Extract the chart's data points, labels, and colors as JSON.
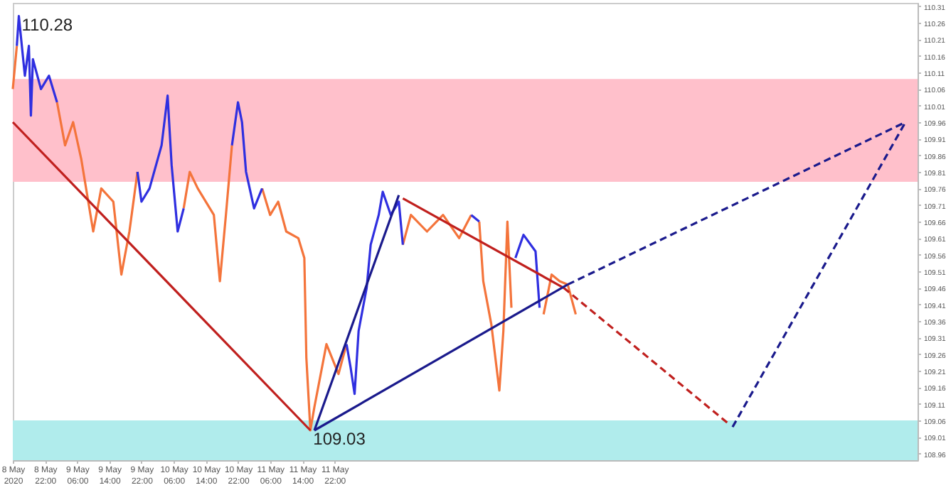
{
  "chart_data": {
    "type": "line",
    "xlim": [
      "2020-05-08T14:00",
      "2020-05-17T23:00"
    ],
    "ylim": [
      108.94,
      110.32
    ],
    "xticks": [
      {
        "value": "2020-05-08T14:00",
        "label": "8 May 2020"
      },
      {
        "value": "2020-05-08T22:00",
        "label": "8 May 22:00"
      },
      {
        "value": "2020-05-09T06:00",
        "label": "9 May 06:00"
      },
      {
        "value": "2020-05-09T14:00",
        "label": "9 May 14:00"
      },
      {
        "value": "2020-05-09T22:00",
        "label": "9 May 22:00"
      },
      {
        "value": "2020-05-10T06:00",
        "label": "10 May 06:00"
      },
      {
        "value": "2020-05-10T14:00",
        "label": "10 May 14:00"
      },
      {
        "value": "2020-05-10T22:00",
        "label": "10 May 22:00"
      },
      {
        "value": "2020-05-11T06:00",
        "label": "11 May 06:00"
      },
      {
        "value": "2020-05-11T14:00",
        "label": "11 May 14:00"
      },
      {
        "value": "2020-05-11T22:00",
        "label": "11 May 22:00"
      }
    ],
    "yticks": [
      110.31,
      110.26,
      110.21,
      110.16,
      110.11,
      110.06,
      110.01,
      109.96,
      109.91,
      109.86,
      109.81,
      109.76,
      109.71,
      109.66,
      109.61,
      109.56,
      109.51,
      109.46,
      109.41,
      109.36,
      109.31,
      109.26,
      109.21,
      109.16,
      109.11,
      109.06,
      109.01,
      108.96
    ],
    "grid": false,
    "bands": [
      {
        "axis": "y",
        "from": 109.78,
        "to": 110.09,
        "color": "#ffc0cb"
      },
      {
        "axis": "y",
        "from": 108.94,
        "to": 109.06,
        "color": "#b0ecec"
      }
    ],
    "series": [
      {
        "color": "#f4743b",
        "x": [
          "2020-05-08T14:00",
          "2020-05-08T15:00",
          "2020-05-08T20:00",
          "2020-05-09T01:00",
          "2020-05-09T03:00",
          "2020-05-09T05:00",
          "2020-05-09T07:00",
          "2020-05-09T10:00",
          "2020-05-09T12:00",
          "2020-05-09T15:00",
          "2020-05-09T17:00",
          "2020-05-09T19:00",
          "2020-05-09T21:00",
          "2020-05-10T02:00",
          "2020-05-10T08:30",
          "2020-05-10T10:00",
          "2020-05-10T12:00",
          "2020-05-10T16:00",
          "2020-05-10T17:30",
          "2020-05-10T19:00",
          "2020-05-10T20:30",
          "2020-05-11T00:00",
          "2020-05-11T04:00",
          "2020-05-11T06:00",
          "2020-05-11T08:00",
          "2020-05-11T10:00",
          "2020-05-11T13:00",
          "2020-05-11T14:30",
          "2020-05-11T15:00",
          "2020-05-11T16:00",
          "2020-05-11T17:00",
          "2020-05-11T20:00",
          "2020-05-11T23:00",
          "2020-05-12T01:00",
          "2020-05-12T08:00",
          "2020-05-12T15:00",
          "2020-05-12T17:00",
          "2020-05-12T21:00",
          "2020-05-13T01:00",
          "2020-05-13T05:00",
          "2020-05-13T08:00",
          "2020-05-13T09:00",
          "2020-05-13T10:00",
          "2020-05-13T11:00",
          "2020-05-13T13:00",
          "2020-05-13T15:00",
          "2020-05-13T16:00",
          "2020-05-13T17:00",
          "2020-05-13T18:00",
          "2020-05-13T22:00",
          "2020-05-14T02:00",
          "2020-05-14T04:00",
          "2020-05-14T06:00",
          "2020-05-14T08:00",
          "2020-05-14T10:00"
        ],
        "values": [
          110.06,
          110.19,
          null,
          110.02,
          109.89,
          109.96,
          109.85,
          109.63,
          109.76,
          109.72,
          109.5,
          109.63,
          109.81,
          null,
          109.7,
          109.81,
          109.76,
          109.68,
          109.48,
          109.68,
          109.89,
          null,
          109.76,
          109.68,
          109.72,
          109.63,
          109.61,
          109.55,
          109.25,
          109.03,
          109.1,
          109.29,
          109.2,
          109.29,
          null,
          109.59,
          109.68,
          109.63,
          109.68,
          109.61,
          109.68,
          null,
          109.66,
          109.48,
          109.35,
          109.15,
          109.33,
          109.66,
          109.4,
          null,
          109.38,
          109.5,
          109.48,
          109.47,
          109.38
        ]
      },
      {
        "color": "#2f2fe0",
        "x": [
          "2020-05-08T15:00",
          "2020-05-08T15:30",
          "2020-05-08T17:00",
          "2020-05-08T18:00",
          "2020-05-08T18:30",
          "2020-05-08T19:00",
          "2020-05-08T21:00",
          "2020-05-08T23:00",
          "2020-05-09T01:00",
          "2020-05-09T10:00",
          "2020-05-09T21:00",
          "2020-05-09T22:00",
          "2020-05-10T00:00",
          "2020-05-10T03:00",
          "2020-05-10T04:30",
          "2020-05-10T05:30",
          "2020-05-10T07:00",
          "2020-05-10T08:30",
          "2020-05-10T14:00",
          "2020-05-10T20:30",
          "2020-05-10T22:00",
          "2020-05-10T23:00",
          "2020-05-11T00:00",
          "2020-05-11T02:00",
          "2020-05-11T04:00",
          "2020-05-11T12:00",
          "2020-05-12T01:00",
          "2020-05-12T02:00",
          "2020-05-12T03:00",
          "2020-05-12T04:00",
          "2020-05-12T06:00",
          "2020-05-12T07:00",
          "2020-05-12T09:00",
          "2020-05-12T10:00",
          "2020-05-12T12:00",
          "2020-05-12T14:00",
          "2020-05-12T15:00",
          "2020-05-12T23:00",
          "2020-05-13T08:00",
          "2020-05-13T10:00",
          "2020-05-13T14:00",
          "2020-05-13T19:00",
          "2020-05-13T21:00",
          "2020-05-14T00:00",
          "2020-05-14T01:00"
        ],
        "values": [
          110.19,
          110.28,
          110.1,
          110.19,
          109.98,
          110.15,
          110.06,
          110.1,
          110.02,
          null,
          109.81,
          109.72,
          109.76,
          109.89,
          110.04,
          109.83,
          109.63,
          109.7,
          null,
          109.89,
          110.02,
          109.96,
          109.81,
          109.7,
          109.76,
          null,
          109.29,
          109.22,
          109.14,
          109.33,
          109.46,
          109.59,
          109.68,
          109.75,
          109.68,
          109.72,
          109.59,
          null,
          109.68,
          109.66,
          null,
          109.55,
          109.62,
          109.57,
          109.4
        ]
      },
      {
        "type": "line",
        "color": "#c0201e",
        "x": [
          "2020-05-08T14:00",
          "2020-05-11T16:00"
        ],
        "values": [
          109.96,
          109.03
        ]
      },
      {
        "type": "line",
        "color": "#1a1a8c",
        "x": [
          "2020-05-11T17:00",
          "2020-05-12T14:00"
        ],
        "values": [
          109.03,
          109.74
        ]
      },
      {
        "type": "line",
        "color": "#c0201e",
        "x": [
          "2020-05-12T15:00",
          "2020-05-14T07:00"
        ],
        "values": [
          109.73,
          109.46
        ]
      },
      {
        "type": "line",
        "color": "#c0201e",
        "line_style": "dashed",
        "x": [
          "2020-05-14T07:00",
          "2020-05-16T00:00"
        ],
        "values": [
          109.46,
          109.05
        ]
      },
      {
        "type": "line",
        "color": "#1a1a8c",
        "x": [
          "2020-05-11T17:00",
          "2020-05-14T08:00"
        ],
        "values": [
          109.03,
          109.47
        ]
      },
      {
        "type": "line",
        "color": "#1a1a8c",
        "line_style": "dashed",
        "x": [
          "2020-05-14T08:00",
          "2020-05-17T20:00"
        ],
        "values": [
          109.47,
          109.96
        ]
      },
      {
        "type": "line",
        "color": "#1a1a8c",
        "line_style": "dashed",
        "x": [
          "2020-05-16T01:00",
          "2020-05-17T20:00"
        ],
        "values": [
          109.04,
          109.96
        ]
      }
    ],
    "annotations": [
      {
        "text": "110.28",
        "x": "2020-05-08T15:30",
        "y": 110.28
      },
      {
        "text": "109.03",
        "x": "2020-05-11T16:00",
        "y": 109.03
      }
    ]
  }
}
